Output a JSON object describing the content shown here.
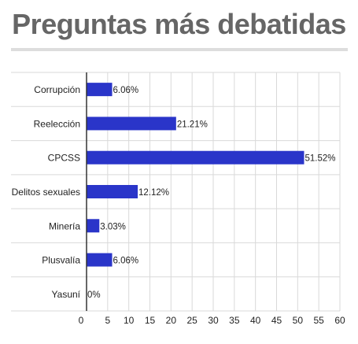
{
  "chart_data": {
    "type": "bar",
    "orientation": "horizontal",
    "title": "Preguntas más debatidas",
    "categories": [
      "Corrupción",
      "Reelección",
      "CPCSS",
      "Delitos sexuales",
      "Minería",
      "Plusvalía",
      "Yasuní"
    ],
    "values": [
      6.06,
      21.21,
      51.52,
      12.12,
      3.03,
      6.06,
      0
    ],
    "value_labels": [
      "6.06%",
      "21.21%",
      "51.52%",
      "12.12%",
      "3.03%",
      "6.06%",
      "0%"
    ],
    "xlim": [
      0,
      60
    ],
    "xticks": [
      "0",
      "5",
      "10",
      "15",
      "20",
      "25",
      "30",
      "35",
      "40",
      "45",
      "50",
      "55",
      "60"
    ],
    "grid": true,
    "legend": "none",
    "bar_color": "#2a35c9"
  }
}
